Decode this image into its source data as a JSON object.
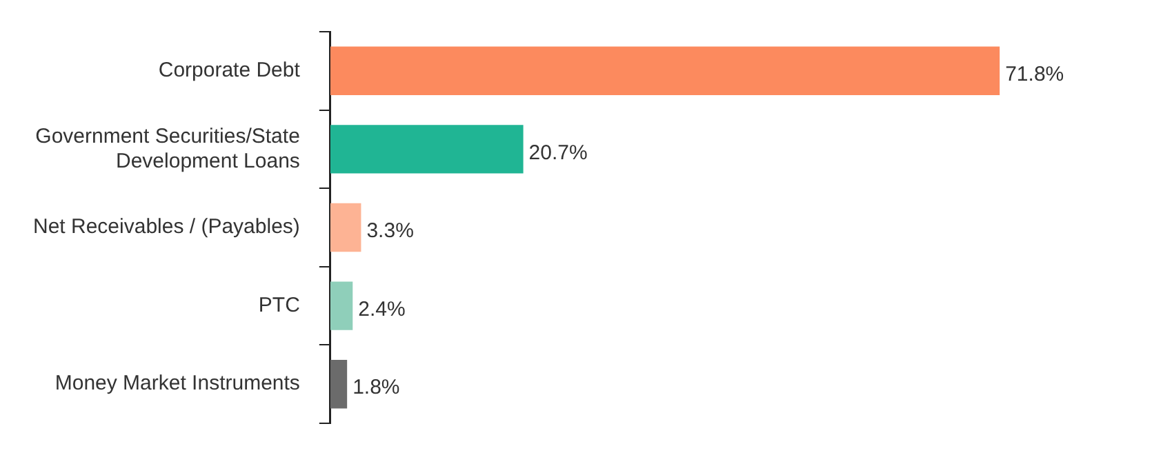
{
  "chart_data": {
    "type": "bar",
    "orientation": "horizontal",
    "categories": [
      "Corporate Debt",
      "Government Securities/State Development Loans",
      "Net Receivables / (Payables)",
      "PTC",
      "Money Market Instruments"
    ],
    "values": [
      71.8,
      20.7,
      3.3,
      2.4,
      1.8
    ],
    "colors": [
      "#fc8a5e",
      "#20b594",
      "#fdb394",
      "#8fcfba",
      "#6b6b6b"
    ],
    "value_labels": [
      "71.8%",
      "20.7%",
      "3.3%",
      "2.4%",
      "1.8%"
    ],
    "legend": false
  }
}
